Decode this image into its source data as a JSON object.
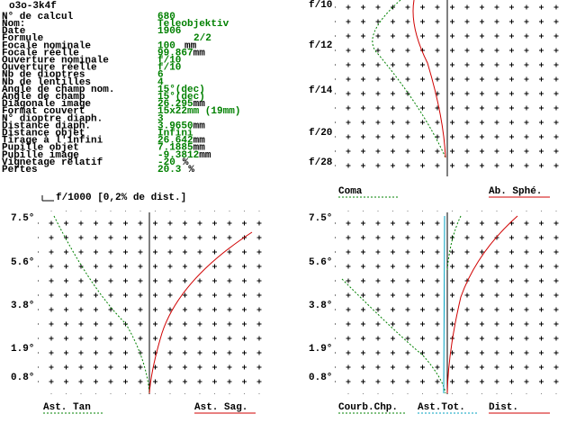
{
  "header": {
    "title": "o3o-3k4f"
  },
  "fields": [
    {
      "label": "N° de calcul",
      "value": "680"
    },
    {
      "label": "Nom:",
      "value": "Teleobjektiv"
    },
    {
      "label": "Date",
      "value": "1906"
    },
    {
      "label": "Formule",
      "value": "2/2"
    },
    {
      "label": "Focale nominale",
      "value": "100",
      "unit": "mm"
    },
    {
      "label": "Focale réelle",
      "value": "99.867",
      "unit": "mm"
    },
    {
      "label": "Ouverture nominale",
      "value": "f/10"
    },
    {
      "label": "Ouverture réelle",
      "value": "f/10"
    },
    {
      "label": "Nb de dioptres",
      "value": "6"
    },
    {
      "label": "Nb de lentilles",
      "value": "4"
    },
    {
      "label": "Angle de champ nom.",
      "value": "15°(dec)"
    },
    {
      "label": "Angle de champ",
      "value": "15°(dec)"
    },
    {
      "label": "Diagonale image",
      "value": "26.295",
      "unit": "mm"
    },
    {
      "label": "Format couvert",
      "value": "15x22mm (19mm)"
    },
    {
      "label": "N° dioptre diaph.",
      "value": "3"
    },
    {
      "label": "Distance diaph.",
      "value": "3.9650",
      "unit": "mm"
    },
    {
      "label": "Distance objet",
      "value": "Infini"
    },
    {
      "label": "Tirage à l'infini",
      "value": "26.642",
      "unit": "mm"
    },
    {
      "label": "Pupille objet",
      "value": "7.1885",
      "unit": "mm"
    },
    {
      "label": "Pupille image",
      "value": "-9.3812",
      "unit": "mm"
    },
    {
      "label": "Vignetage relatif",
      "value": "-20",
      "unit": "%"
    },
    {
      "label": "Pertes",
      "value": "20.3",
      "unit": "%"
    }
  ],
  "plots": {
    "aperture": {
      "y_labels": [
        "f/10",
        "f/12",
        "f/14",
        "f/20",
        "f/28"
      ],
      "legend": [
        "Coma",
        "Ab. Sphé."
      ]
    },
    "astigmatism": {
      "title": "f/1000 [0,2% de dist.]",
      "y_labels": [
        "7.5°",
        "5.6°",
        "3.8°",
        "1.9°",
        "0.8°"
      ],
      "legend": [
        "Ast. Tan",
        "Ast. Sag."
      ]
    },
    "field": {
      "y_labels": [
        "7.5°",
        "5.6°",
        "3.8°",
        "1.9°",
        "0.8°"
      ],
      "legend": [
        "Courb.Chp.",
        "Ast.Tot.",
        "Dist."
      ]
    }
  }
}
